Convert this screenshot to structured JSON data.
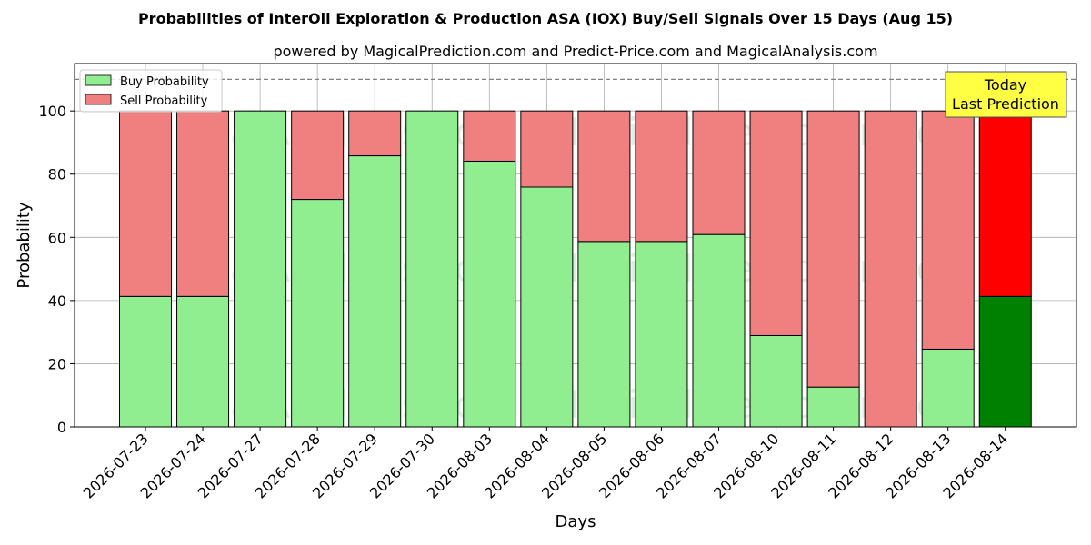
{
  "chart_data": {
    "type": "bar",
    "stacked": true,
    "title": "Probabilities of InterOil Exploration & Production ASA (IOX) Buy/Sell Signals Over 15 Days (Aug 15)",
    "subtitle": "powered by MagicalPrediction.com and Predict-Price.com and MagicalAnalysis.com",
    "xlabel": "Days",
    "ylabel": "Probability",
    "ylim": [
      0,
      115
    ],
    "yticks": [
      0,
      20,
      40,
      60,
      80,
      100
    ],
    "grid": true,
    "legend_position": "top-left",
    "reference_line": 110,
    "categories": [
      "2026-07-23",
      "2026-07-24",
      "2026-07-27",
      "2026-07-28",
      "2026-07-29",
      "2026-07-30",
      "2026-08-03",
      "2026-08-04",
      "2026-08-05",
      "2026-08-06",
      "2026-08-07",
      "2026-08-10",
      "2026-08-11",
      "2026-08-12",
      "2026-08-13",
      "2026-08-14"
    ],
    "series": [
      {
        "name": "Buy Probability",
        "color": "#90ee90",
        "last_color": "#008000",
        "values": [
          41.3,
          41.3,
          100,
          72,
          85.8,
          100,
          84.1,
          75.9,
          58.7,
          58.7,
          60.9,
          28.9,
          12.6,
          0,
          24.6,
          41.3
        ]
      },
      {
        "name": "Sell Probability",
        "color": "#f08080",
        "last_color": "#ff0000",
        "values": [
          58.7,
          58.7,
          0,
          28,
          14.2,
          0,
          15.9,
          24.1,
          41.3,
          41.3,
          39.1,
          71.1,
          87.4,
          100,
          75.4,
          58.7
        ]
      }
    ],
    "annotation": {
      "line1": "Today",
      "line2": "Last Prediction",
      "color": "#ffff44"
    },
    "watermarks": [
      "MagicalAnalysis.com",
      "MagicalPrediction.com"
    ]
  }
}
